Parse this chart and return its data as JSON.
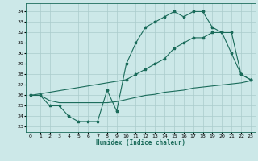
{
  "xlabel": "Humidex (Indice chaleur)",
  "background_color": "#cce8e8",
  "grid_color": "#aacccc",
  "line_color": "#1a6b5a",
  "xlim": [
    -0.5,
    23.5
  ],
  "ylim": [
    22.5,
    34.8
  ],
  "yticks": [
    23,
    24,
    25,
    26,
    27,
    28,
    29,
    30,
    31,
    32,
    33,
    34
  ],
  "xticks": [
    0,
    1,
    2,
    3,
    4,
    5,
    6,
    7,
    8,
    9,
    10,
    11,
    12,
    13,
    14,
    15,
    16,
    17,
    18,
    19,
    20,
    21,
    22,
    23
  ],
  "curve1_x": [
    0,
    1,
    2,
    3,
    4,
    5,
    6,
    7,
    8,
    9,
    10,
    11,
    12,
    13,
    14,
    15,
    16,
    17,
    18,
    19,
    20,
    21,
    22,
    23
  ],
  "curve1_y": [
    26.0,
    26.0,
    25.0,
    25.0,
    24.0,
    23.5,
    23.5,
    23.5,
    26.5,
    24.5,
    29.0,
    31.0,
    32.5,
    33.0,
    33.5,
    34.0,
    33.5,
    34.0,
    34.0,
    32.5,
    32.0,
    30.0,
    28.0,
    27.5
  ],
  "curve2_x": [
    0,
    10,
    11,
    12,
    13,
    14,
    15,
    16,
    17,
    18,
    19,
    20,
    21,
    22,
    23
  ],
  "curve2_y": [
    26.0,
    27.5,
    28.0,
    28.5,
    29.0,
    29.5,
    30.5,
    31.0,
    31.5,
    31.5,
    32.0,
    32.0,
    32.0,
    28.0,
    27.5
  ],
  "curve3_x": [
    0,
    1,
    2,
    3,
    4,
    5,
    6,
    7,
    8,
    9,
    10,
    11,
    12,
    13,
    14,
    15,
    16,
    17,
    18,
    19,
    20,
    21,
    22,
    23
  ],
  "curve3_y": [
    26.0,
    26.0,
    25.5,
    25.3,
    25.3,
    25.3,
    25.3,
    25.3,
    25.3,
    25.4,
    25.6,
    25.8,
    26.0,
    26.1,
    26.3,
    26.4,
    26.5,
    26.7,
    26.8,
    26.9,
    27.0,
    27.1,
    27.2,
    27.4
  ]
}
